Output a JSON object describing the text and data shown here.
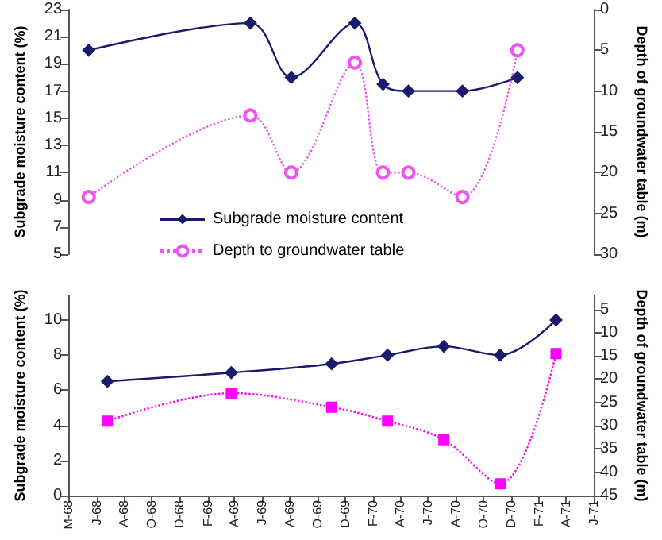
{
  "chart_data": [
    {
      "type": "line",
      "ylabel": "Subgrade moisture content (%)",
      "y2label": "Depth of groundwater table (m)",
      "xlim": [
        "1968-03-31",
        "1971-06-01"
      ],
      "ylim": [
        5,
        23
      ],
      "yticks": [
        5,
        7,
        9,
        11,
        13,
        15,
        17,
        19,
        21,
        23
      ],
      "y2lim": [
        30,
        0
      ],
      "y2ticks": [
        0,
        5,
        10,
        15,
        20,
        25,
        30
      ],
      "tick_labels": "y",
      "grid": false,
      "legend": "bottom left",
      "series": [
        {
          "name": "Subgrade moisture content",
          "color": "#1a1a6e",
          "marker": "diamond",
          "line_style": "solid",
          "x": [
            "1968-05-15",
            "1969-05-06",
            "1969-08-04",
            "1969-12-22",
            "1970-02-22",
            "1970-04-19",
            "1970-08-16",
            "1970-12-15"
          ],
          "values": [
            20,
            22,
            18,
            22,
            17.5,
            17,
            17,
            18
          ]
        },
        {
          "name": "Depth to groundwater table",
          "color": "#ee55ee",
          "marker": "circle",
          "line_style": "dotted",
          "axis": "y2",
          "x": [
            "1968-05-15",
            "1969-05-06",
            "1969-08-04",
            "1969-12-22",
            "1970-02-22",
            "1970-04-19",
            "1970-08-16",
            "1970-12-15"
          ],
          "values": [
            23,
            13,
            20,
            6.5,
            20,
            20,
            23,
            5
          ]
        }
      ]
    },
    {
      "type": "line",
      "ylabel": "Subgrade moisture content (%)",
      "y2label": "Depth of groundwater table (m)",
      "xlim": [
        "1968-03-31",
        "1971-06-01"
      ],
      "xticks": [
        {
          "value": "1968-03-31",
          "label": "M-68"
        },
        {
          "value": "1968-06-01",
          "label": "J-68"
        },
        {
          "value": "1968-08-01",
          "label": "A-68"
        },
        {
          "value": "1968-10-01",
          "label": "O-68"
        },
        {
          "value": "1968-12-01",
          "label": "D-68"
        },
        {
          "value": "1969-02-01",
          "label": "F-69"
        },
        {
          "value": "1969-04-01",
          "label": "A-69"
        },
        {
          "value": "1969-06-01",
          "label": "J-69"
        },
        {
          "value": "1969-08-01",
          "label": "A-69"
        },
        {
          "value": "1969-10-01",
          "label": "O-69"
        },
        {
          "value": "1969-12-01",
          "label": "D-69"
        },
        {
          "value": "1970-02-01",
          "label": "F-70"
        },
        {
          "value": "1970-04-01",
          "label": "A-70"
        },
        {
          "value": "1970-06-01",
          "label": "J-70"
        },
        {
          "value": "1970-08-01",
          "label": "A-70"
        },
        {
          "value": "1970-10-01",
          "label": "O-70"
        },
        {
          "value": "1970-12-01",
          "label": "D-70"
        },
        {
          "value": "1971-02-01",
          "label": "F-71"
        },
        {
          "value": "1971-04-01",
          "label": "A-71"
        },
        {
          "value": "1971-06-01",
          "label": "J-71"
        }
      ],
      "ylim": [
        0,
        11.4
      ],
      "yticks": [
        0,
        2,
        4,
        6,
        8,
        10
      ],
      "y2lim": [
        45,
        2
      ],
      "y2ticks": [
        5,
        10,
        15,
        20,
        25,
        30,
        35,
        40,
        45
      ],
      "grid": false,
      "series": [
        {
          "color": "#1a1a6e",
          "marker": "diamond",
          "line_style": "solid",
          "x": [
            "1968-06-25",
            "1969-03-25",
            "1969-11-01",
            "1970-03-04",
            "1970-07-06",
            "1970-11-07",
            "1971-03-10"
          ],
          "values": [
            6.5,
            7,
            7.5,
            8,
            8.5,
            8,
            10
          ]
        },
        {
          "color": "#ff00ff",
          "marker": "square",
          "line_style": "dotted",
          "axis": "y2",
          "x": [
            "1968-06-25",
            "1969-03-25",
            "1969-11-01",
            "1970-03-04",
            "1970-07-06",
            "1970-11-07",
            "1971-03-10"
          ],
          "values": [
            29,
            23,
            26,
            29,
            33,
            42.5,
            14.5
          ]
        }
      ]
    }
  ]
}
